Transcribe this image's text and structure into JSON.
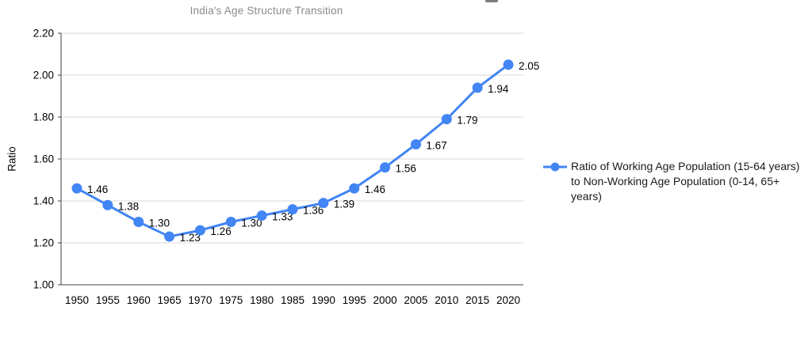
{
  "chart_data": {
    "type": "line",
    "title": "India's Age Structure Transition",
    "xlabel": "",
    "ylabel": "Ratio",
    "x": [
      "1950",
      "1955",
      "1960",
      "1965",
      "1970",
      "1975",
      "1980",
      "1985",
      "1990",
      "1995",
      "2000",
      "2005",
      "2010",
      "2015",
      "2020"
    ],
    "series": [
      {
        "name": "Ratio of Working Age Population (15-64 years) to Non-Working Age Population (0-14, 65+ years)",
        "values": [
          1.46,
          1.38,
          1.3,
          1.23,
          1.26,
          1.3,
          1.33,
          1.36,
          1.39,
          1.46,
          1.56,
          1.67,
          1.79,
          1.94,
          2.05
        ]
      }
    ],
    "data_labels": [
      "1.46",
      "1.38",
      "1.30",
      "1.23",
      "1.26",
      "1.30",
      "1.33",
      "1.36",
      "1.39",
      "1.46",
      "1.56",
      "1.67",
      "1.79",
      "1.94",
      "2.05"
    ],
    "ylim": [
      1.0,
      2.2
    ],
    "y_ticks": [
      "1.00",
      "1.20",
      "1.40",
      "1.60",
      "1.80",
      "2.00",
      "2.20"
    ],
    "grid": true,
    "legend_position": "right",
    "colors": {
      "series": "#4285f4",
      "gridline": "#d9d9d9",
      "axis": "#424242",
      "tick_label": "#000000",
      "data_label": "#000000",
      "subtitle": "#8a8a8a",
      "legend_text": "#1a1a1a"
    }
  }
}
